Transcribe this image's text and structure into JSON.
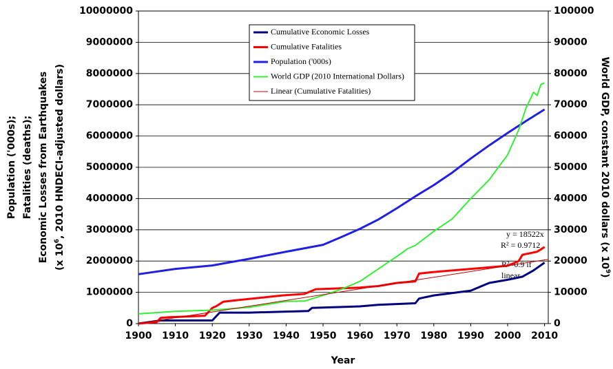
{
  "chart_data": {
    "type": "line",
    "xlabel": "Year",
    "ylabel": [
      "Population ('000s);",
      "Fatalities (deaths);",
      "Economic Losses from Earthquakes",
      [
        "(x 10",
        "6",
        ", 2010 HNDECI-adjusted dollars)"
      ]
    ],
    "y2label": [
      "World GDP, constant 2010 dollars (x 10",
      "9",
      ")"
    ],
    "xlim": [
      1900,
      2011
    ],
    "xticks": [
      1900,
      1910,
      1920,
      1930,
      1940,
      1950,
      1960,
      1970,
      1980,
      1990,
      2000,
      2010
    ],
    "ylim": [
      0,
      10000000
    ],
    "yticks": [
      0,
      1000000,
      2000000,
      3000000,
      4000000,
      5000000,
      6000000,
      7000000,
      8000000,
      9000000,
      10000000
    ],
    "y2lim": [
      0,
      100000
    ],
    "y2ticks": [
      0,
      10000,
      20000,
      30000,
      40000,
      50000,
      60000,
      70000,
      80000,
      90000,
      100000
    ],
    "grid": true,
    "series": [
      {
        "name": "Cumulative Economic Losses",
        "color": "#000080",
        "width": 3,
        "x": [
          1900,
          1906,
          1920,
          1922,
          1930,
          1946,
          1947,
          1960,
          1965,
          1975,
          1976,
          1980,
          1990,
          1995,
          2000,
          2004,
          2007,
          2010
        ],
        "values": [
          0,
          100000,
          100000,
          350000,
          350000,
          400000,
          500000,
          550000,
          600000,
          650000,
          800000,
          900000,
          1050000,
          1300000,
          1400000,
          1500000,
          1700000,
          1950000
        ]
      },
      {
        "name": "Cumulative Fatalities",
        "color": "#ff0000",
        "width": 3,
        "x": [
          1900,
          1905,
          1906,
          1908,
          1918,
          1920,
          1921,
          1923,
          1927,
          1935,
          1939,
          1945,
          1948,
          1960,
          1965,
          1970,
          1975,
          1976,
          1980,
          1990,
          2000,
          2003,
          2004,
          2008,
          2010
        ],
        "values": [
          0,
          50000,
          180000,
          200000,
          250000,
          500000,
          550000,
          700000,
          750000,
          850000,
          900000,
          950000,
          1100000,
          1150000,
          1200000,
          1300000,
          1350000,
          1600000,
          1650000,
          1750000,
          1850000,
          2000000,
          2200000,
          2300000,
          2450000
        ]
      },
      {
        "name": "Population ('000s)",
        "color": "#1f1fe6",
        "width": 3,
        "x": [
          1900,
          1910,
          1920,
          1930,
          1940,
          1950,
          1955,
          1960,
          1965,
          1970,
          1975,
          1980,
          1985,
          1990,
          1995,
          2000,
          2005,
          2010
        ],
        "values": [
          1580000,
          1750000,
          1860000,
          2070000,
          2300000,
          2520000,
          2770000,
          3030000,
          3330000,
          3690000,
          4070000,
          4430000,
          4830000,
          5280000,
          5700000,
          6100000,
          6480000,
          6850000
        ]
      },
      {
        "name": "World GDP (2010 International Dollars)",
        "color": "#33ee33",
        "width": 2,
        "axis": "y2",
        "x": [
          1900,
          1910,
          1920,
          1930,
          1940,
          1945,
          1950,
          1955,
          1960,
          1965,
          1970,
          1973,
          1975,
          1980,
          1985,
          1990,
          1995,
          2000,
          2003,
          2005,
          2007,
          2008,
          2009,
          2010
        ],
        "values": [
          3100,
          3900,
          4300,
          5200,
          7100,
          7200,
          9000,
          11000,
          13500,
          17500,
          21500,
          24000,
          25000,
          29500,
          33500,
          40000,
          46000,
          54000,
          62000,
          69000,
          74000,
          73000,
          76500,
          77000
        ]
      },
      {
        "name": "Linear (Cumulative Fatalities)",
        "color": "#c00000",
        "width": 1,
        "x": [
          1900,
          2011
        ],
        "values": [
          0,
          2056000
        ]
      }
    ],
    "annotations": [
      "y = 18522x",
      "R² = 0.9712",
      "R²=0.9 if",
      "linear"
    ]
  }
}
